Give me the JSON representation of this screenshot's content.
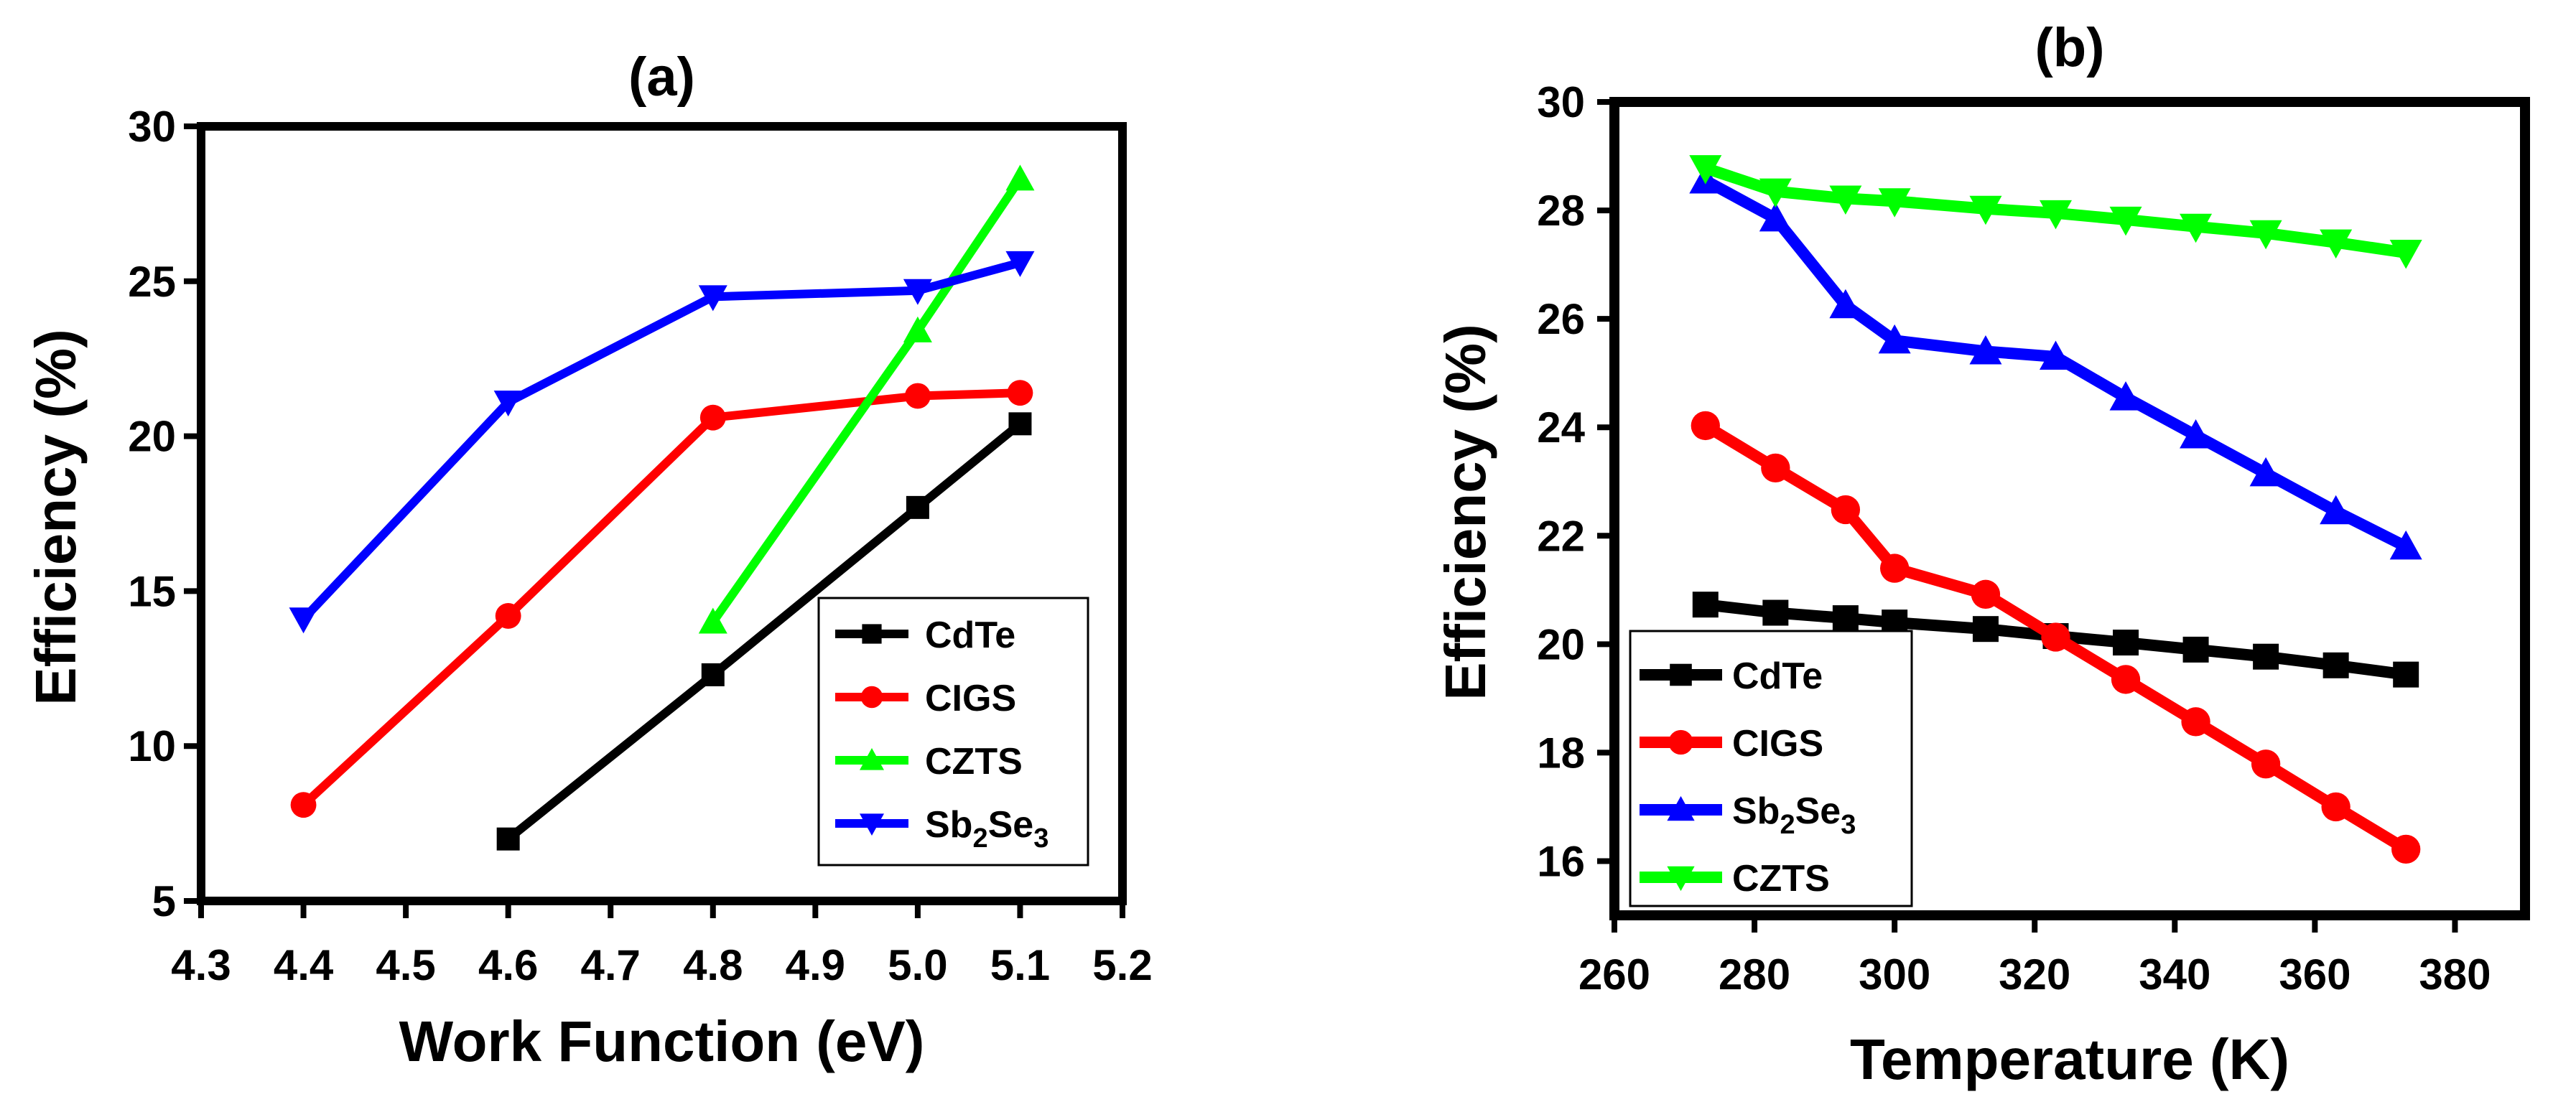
{
  "chart_data": [
    {
      "type": "line",
      "title": "(a)",
      "xlabel": "Work Function (eV)",
      "ylabel": "Efficiency (%)",
      "xlim": [
        4.3,
        5.2
      ],
      "ylim": [
        5,
        30
      ],
      "xticks": [
        4.3,
        4.4,
        4.5,
        4.6,
        4.7,
        4.8,
        4.9,
        5.0,
        5.1,
        5.2
      ],
      "xtick_labels": [
        "4.3",
        "4.4",
        "4.5",
        "4.6",
        "4.7",
        "4.8",
        "4.9",
        "5.0",
        "5.1",
        "5.2"
      ],
      "yticks": [
        5,
        10,
        15,
        20,
        25,
        30
      ],
      "ytick_labels": [
        "5",
        "10",
        "15",
        "20",
        "25",
        "30"
      ],
      "grid": false,
      "legend_position": "bottom-right",
      "series": [
        {
          "name": "CdTe",
          "label": "CdTe",
          "color": "#000000",
          "marker": "square",
          "x": [
            4.6,
            4.8,
            5.0,
            5.1
          ],
          "y": [
            7.0,
            12.3,
            17.7,
            20.4
          ]
        },
        {
          "name": "CIGS",
          "label": "CIGS",
          "color": "#ff0000",
          "marker": "circle",
          "x": [
            4.4,
            4.6,
            4.8,
            5.0,
            5.1
          ],
          "y": [
            8.1,
            14.2,
            20.6,
            21.3,
            21.4
          ]
        },
        {
          "name": "CZTS",
          "label": "CZTS",
          "color": "#00ff00",
          "marker": "triangle-up",
          "x": [
            4.8,
            5.0,
            5.1
          ],
          "y": [
            14.0,
            23.4,
            28.3
          ]
        },
        {
          "name": "Sb2Se3",
          "label": "Sb",
          "sub1": "2",
          "label2": "Se",
          "sub2": "3",
          "color": "#0000ff",
          "marker": "triangle-down",
          "x": [
            4.4,
            4.6,
            4.8,
            5.0,
            5.1
          ],
          "y": [
            14.1,
            21.1,
            24.5,
            24.7,
            25.6
          ]
        }
      ]
    },
    {
      "type": "line",
      "title": "(b)",
      "xlabel": "Temperature (K)",
      "ylabel": "Efficiency (%)",
      "xlim": [
        260,
        390
      ],
      "ylim": [
        15,
        30
      ],
      "xticks": [
        260,
        280,
        300,
        320,
        340,
        360,
        380
      ],
      "xtick_labels": [
        "260",
        "280",
        "300",
        "320",
        "340",
        "360",
        "380"
      ],
      "yticks": [
        16,
        18,
        20,
        22,
        24,
        26,
        28,
        30
      ],
      "ytick_labels": [
        "16",
        "18",
        "20",
        "22",
        "24",
        "26",
        "28",
        "30"
      ],
      "grid": false,
      "legend_position": "bottom-left",
      "series": [
        {
          "name": "CdTe",
          "label": "CdTe",
          "color": "#000000",
          "marker": "square",
          "x": [
            273,
            283,
            293,
            300,
            313,
            323,
            333,
            343,
            353,
            363,
            373
          ],
          "y": [
            20.73,
            20.58,
            20.48,
            20.4,
            20.28,
            20.15,
            20.03,
            19.9,
            19.77,
            19.61,
            19.44
          ]
        },
        {
          "name": "CIGS",
          "label": "CIGS",
          "color": "#ff0000",
          "marker": "circle",
          "x": [
            273,
            283,
            293,
            300,
            313,
            323,
            333,
            343,
            353,
            363,
            373
          ],
          "y": [
            24.03,
            23.25,
            22.48,
            21.4,
            20.92,
            20.13,
            19.35,
            18.57,
            17.79,
            17.0,
            16.22
          ]
        },
        {
          "name": "Sb2Se3",
          "label": "Sb",
          "sub1": "2",
          "label2": "Se",
          "sub2": "3",
          "color": "#0000ff",
          "marker": "triangle-up",
          "x": [
            273,
            283,
            293,
            300,
            313,
            323,
            333,
            343,
            353,
            363,
            373
          ],
          "y": [
            28.55,
            27.85,
            26.25,
            25.6,
            25.4,
            25.3,
            24.55,
            23.85,
            23.15,
            22.45,
            21.8
          ]
        },
        {
          "name": "CZTS",
          "label": "CZTS",
          "color": "#00ff00",
          "marker": "triangle-down",
          "x": [
            273,
            283,
            293,
            300,
            313,
            323,
            333,
            343,
            353,
            363,
            373
          ],
          "y": [
            28.78,
            28.35,
            28.22,
            28.17,
            28.03,
            27.95,
            27.83,
            27.7,
            27.58,
            27.41,
            27.22
          ]
        }
      ]
    }
  ]
}
